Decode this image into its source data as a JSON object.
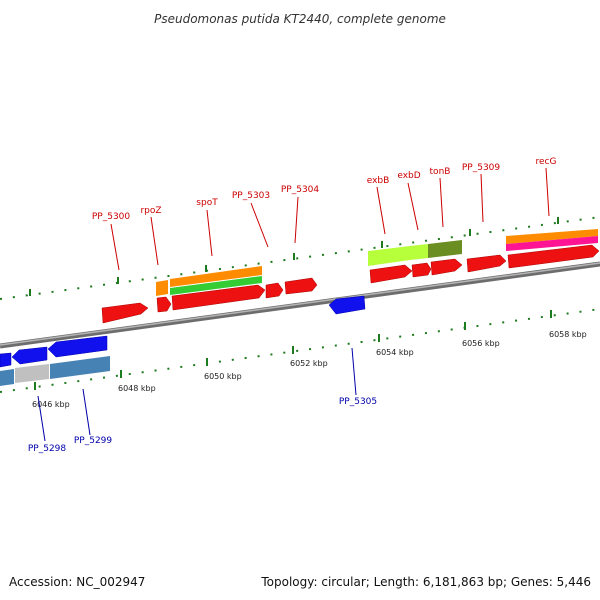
{
  "title": "Pseudomonas putida KT2440, complete genome",
  "footer": {
    "accession": "Accession: NC_002947",
    "summary": "Topology: circular; Length: 6,181,863 bp; Genes: 5,446"
  },
  "colors": {
    "backbone": "#8a8a8a",
    "tick": "#1e7a1e",
    "forward_gene_label": "#cc0000",
    "reverse_gene_label": "#0000aa"
  },
  "ruler": {
    "ticks": [
      {
        "label": "6046 kbp"
      },
      {
        "label": "6048 kbp"
      },
      {
        "label": "6050 kbp"
      },
      {
        "label": "6052 kbp"
      },
      {
        "label": "6054 kbp"
      },
      {
        "label": "6056 kbp"
      },
      {
        "label": "6058 kbp"
      }
    ]
  },
  "gene_labels": {
    "forward": [
      "PP_5300",
      "rpoZ",
      "spoT",
      "PP_5303",
      "PP_5304",
      "exbB",
      "exbD",
      "tonB",
      "PP_5309",
      "recG"
    ],
    "reverse": [
      "PP_5298",
      "PP_5299",
      "PP_5305"
    ]
  }
}
